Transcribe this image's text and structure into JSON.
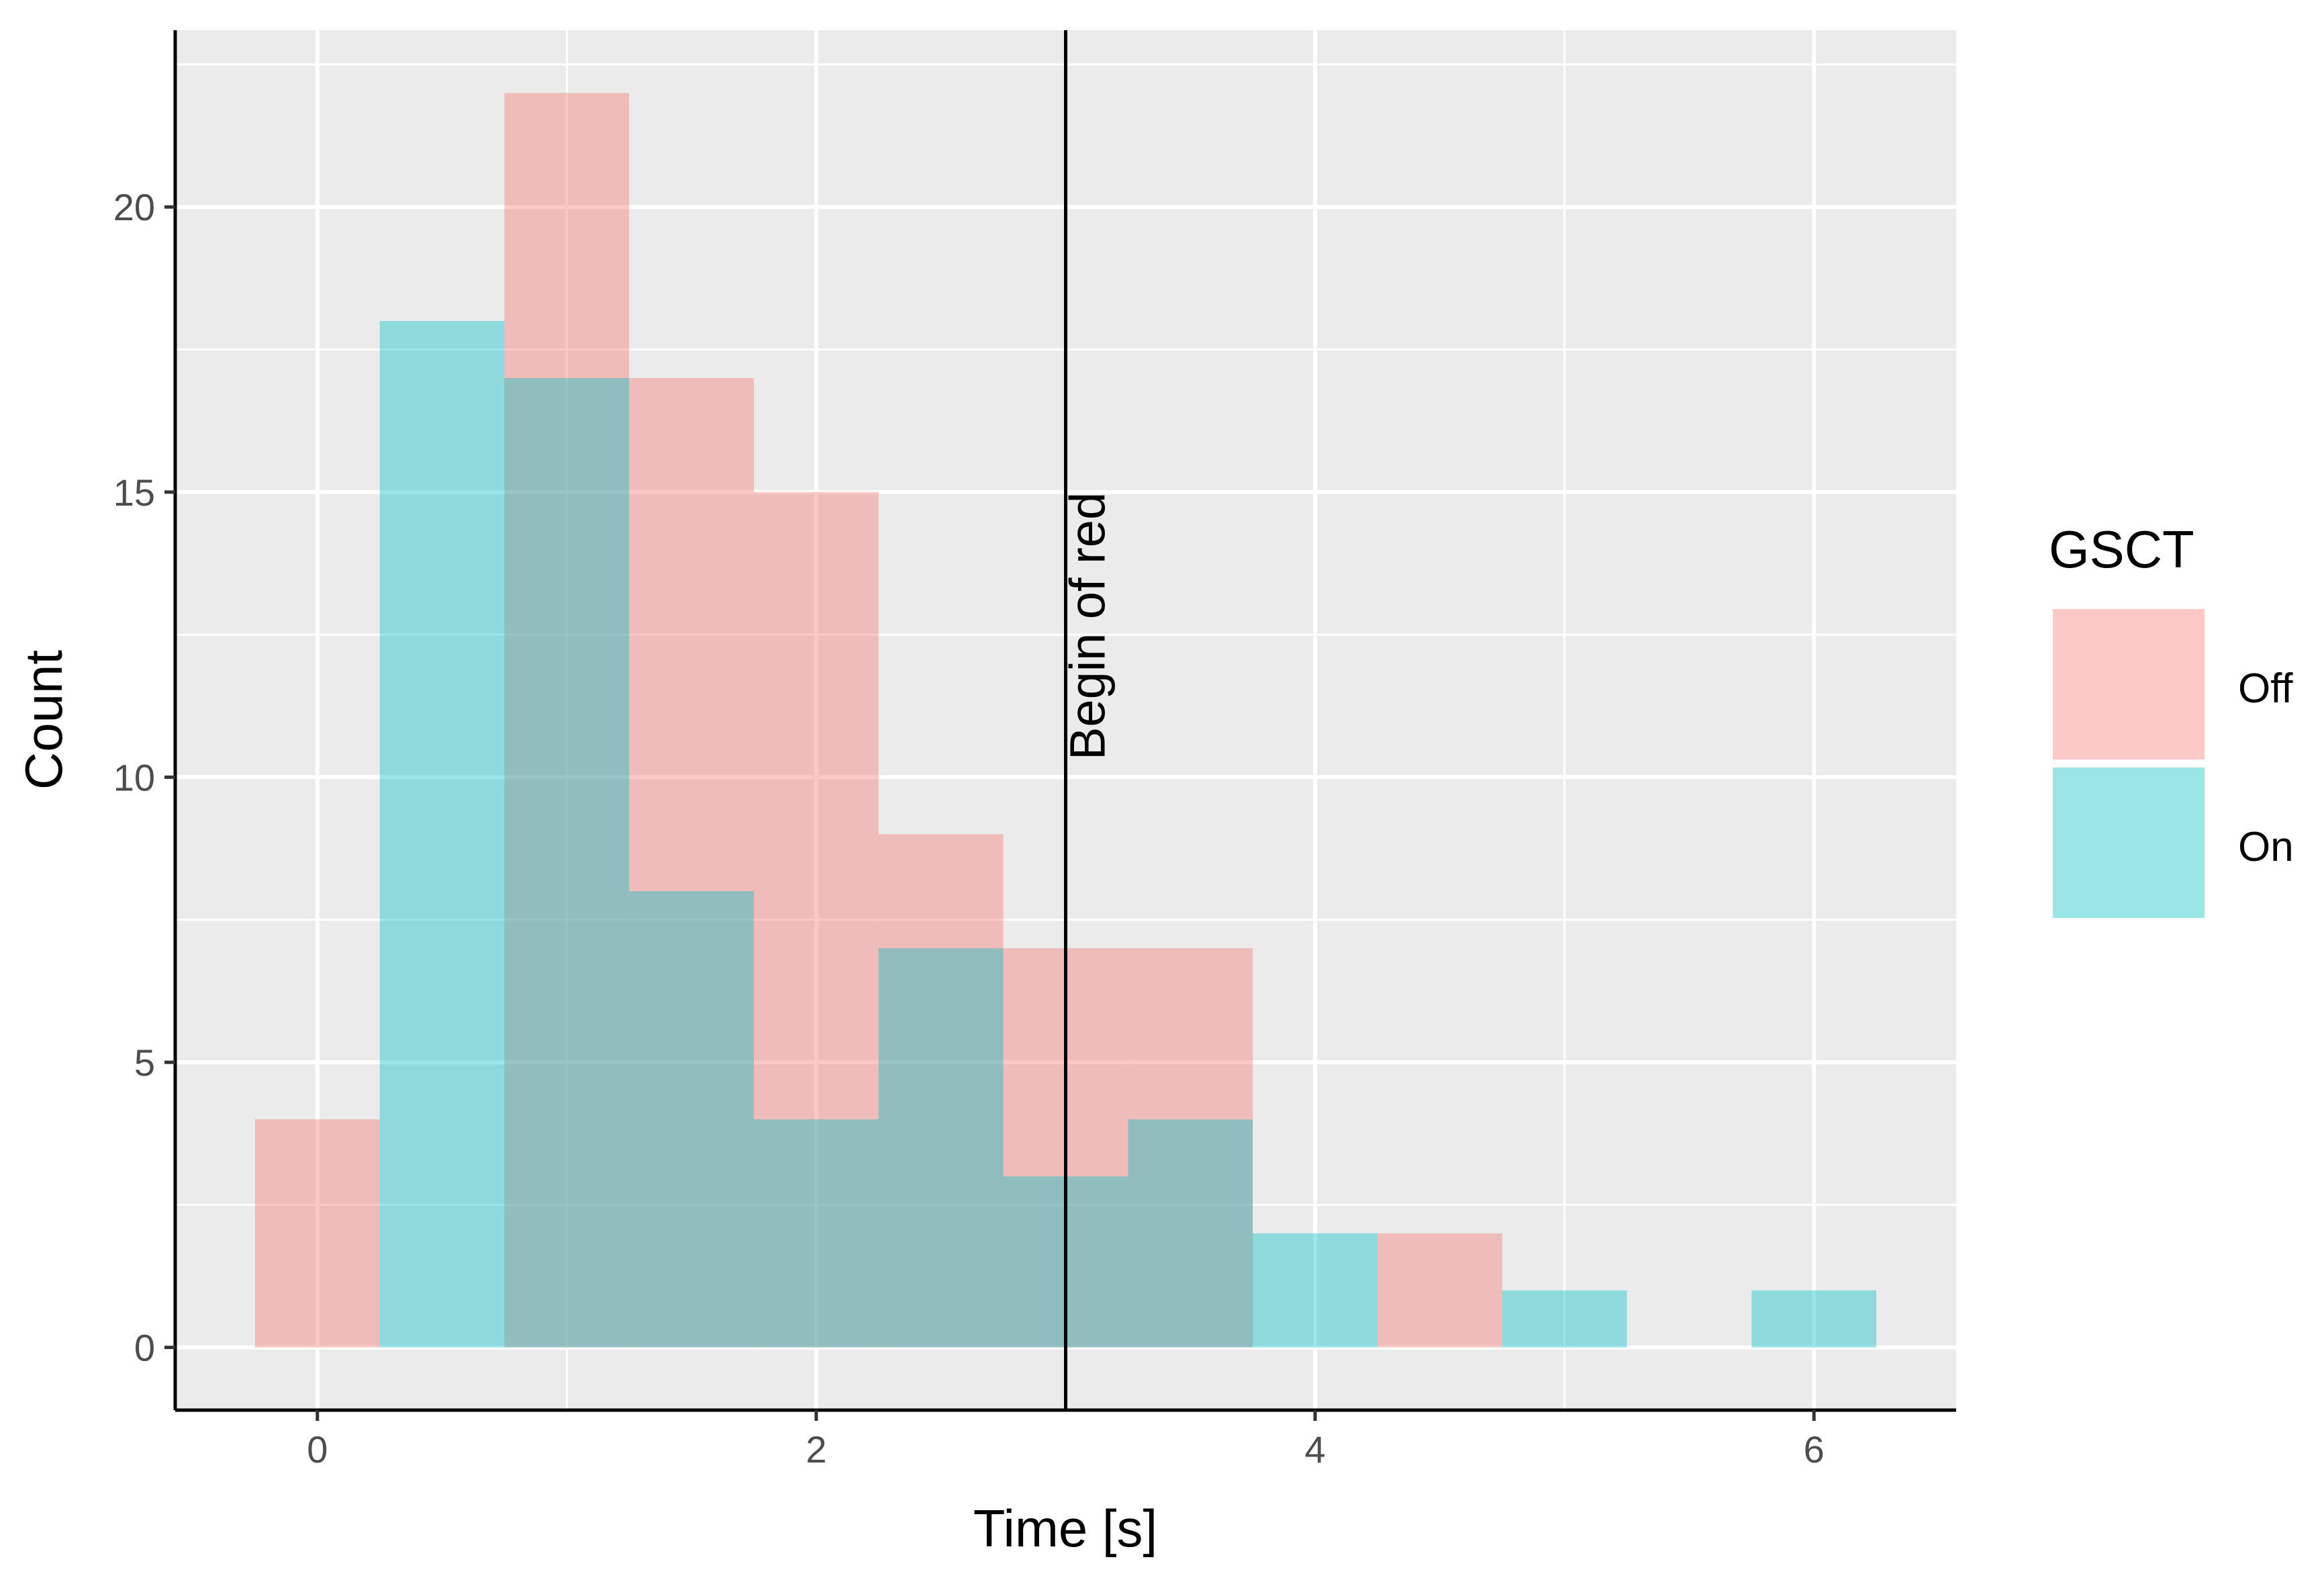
{
  "chart_data": {
    "type": "histogram",
    "title": "",
    "xlabel": "Time [s]",
    "ylabel": "Count",
    "xlim": [
      -0.57,
      6.57
    ],
    "ylim": [
      -1.1,
      23.1
    ],
    "x_ticks": [
      0,
      2,
      4,
      6
    ],
    "y_ticks": [
      0,
      5,
      10,
      15,
      20
    ],
    "x_tick_labels": [
      "0",
      "2",
      "4",
      "6"
    ],
    "y_tick_labels": [
      "0",
      "5",
      "10",
      "15",
      "20"
    ],
    "grid": true,
    "bin_width": 0.5,
    "bins": [
      0,
      0.5,
      1,
      1.5,
      2,
      2.5,
      3,
      3.5,
      4,
      4.5,
      5,
      5.5,
      6
    ],
    "series": [
      {
        "name": "Off",
        "color": "#F8766D",
        "values": [
          4,
          0,
          22,
          17,
          15,
          9,
          7,
          7,
          0,
          2,
          0,
          0,
          0
        ]
      },
      {
        "name": "On",
        "color": "#00BFC4",
        "values": [
          0,
          18,
          17,
          8,
          4,
          7,
          3,
          4,
          2,
          0,
          1,
          0,
          1
        ]
      }
    ],
    "annotations": [
      {
        "type": "vline",
        "x": 3,
        "label": "Begin of red"
      }
    ],
    "legend": {
      "title": "GSCT",
      "position": "right",
      "entries": [
        "Off",
        "On"
      ]
    }
  }
}
